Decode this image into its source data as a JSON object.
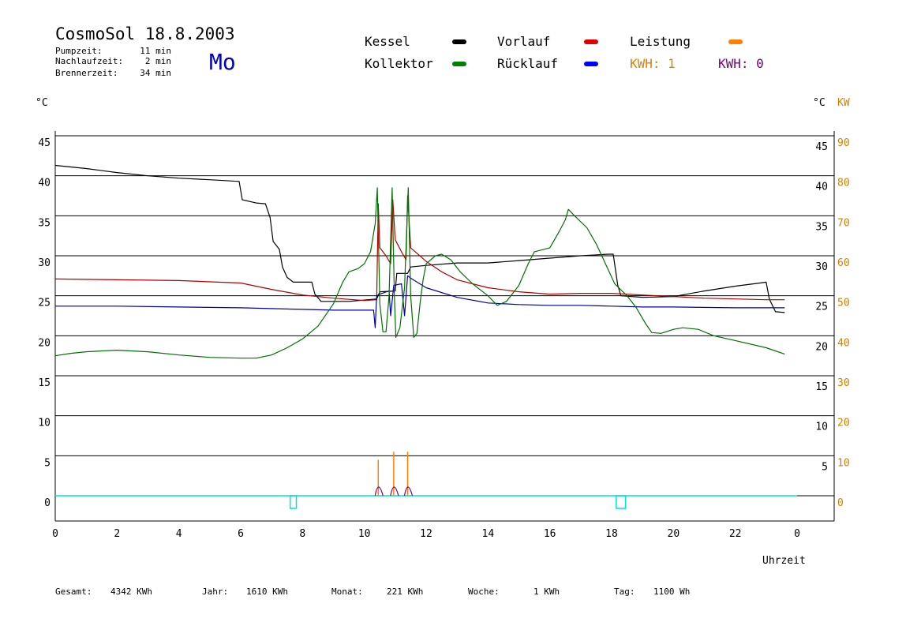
{
  "header": {
    "title": "CosmoSol 18.8.2003",
    "weekday": "Mo",
    "stats": [
      {
        "label": "Pumpzeit:",
        "value": "11 min"
      },
      {
        "label": "Nachlaufzeit:",
        "value": "2 min"
      },
      {
        "label": "Brennerzeit:",
        "value": "34 min"
      }
    ]
  },
  "legend": [
    {
      "name": "Kessel",
      "color": "#000000"
    },
    {
      "name": "Kollektor",
      "color": "#008000"
    },
    {
      "name": "Vorlauf",
      "color": "#e00000"
    },
    {
      "name": "Rücklauf",
      "color": "#0000ff"
    },
    {
      "name": "Leistung",
      "color": "#ff8000"
    }
  ],
  "kwh": [
    {
      "text": "KWH: 1",
      "color": "#e08000"
    },
    {
      "text": "KWH: 0",
      "color": "#800080"
    }
  ],
  "axes": {
    "left_unit": "°C",
    "right_unit_c": "°C",
    "right_unit_kw": "KW",
    "xlabel": "Uhrzeit"
  },
  "footer": [
    {
      "label": "Gesamt:",
      "value": "4342 KWh"
    },
    {
      "label": "Jahr:",
      "value": "1610 KWh"
    },
    {
      "label": "Monat:",
      "value": "221 KWh"
    },
    {
      "label": "Woche:",
      "value": "1 KWh"
    },
    {
      "label": "Tag:",
      "value": "1100 Wh"
    }
  ],
  "chart_data": {
    "type": "line",
    "xlim": [
      0,
      24
    ],
    "ylim": [
      0,
      45
    ],
    "y2lim": [
      0,
      90
    ],
    "x_ticks": [
      "0",
      "2",
      "4",
      "6",
      "8",
      "10",
      "12",
      "14",
      "16",
      "18",
      "20",
      "22",
      "0"
    ],
    "y_ticks": [
      "0",
      "5",
      "10",
      "15",
      "20",
      "25",
      "30",
      "35",
      "40",
      "45"
    ],
    "y2_ticks": [
      "0",
      "10",
      "20",
      "30",
      "40",
      "50",
      "60",
      "70",
      "80",
      "90"
    ],
    "grid": true,
    "colors": {
      "pump_marker": "#00e0e0",
      "leistung_fill": "#800080"
    },
    "series": [
      {
        "name": "Kessel",
        "color": "#000000",
        "points": [
          [
            0,
            41.3
          ],
          [
            1,
            40.9
          ],
          [
            2,
            40.4
          ],
          [
            3,
            40
          ],
          [
            4,
            39.7
          ],
          [
            5,
            39.5
          ],
          [
            5.95,
            39.3
          ],
          [
            6.05,
            37
          ],
          [
            6.5,
            36.6
          ],
          [
            6.8,
            36.5
          ],
          [
            6.95,
            34.8
          ],
          [
            7.05,
            31.8
          ],
          [
            7.25,
            30.8
          ],
          [
            7.35,
            28.6
          ],
          [
            7.5,
            27.3
          ],
          [
            7.7,
            26.7
          ],
          [
            8.3,
            26.7
          ],
          [
            8.4,
            25.2
          ],
          [
            8.6,
            24.3
          ],
          [
            9.5,
            24.3
          ],
          [
            10.4,
            24.6
          ],
          [
            10.5,
            25.5
          ],
          [
            11.0,
            25.6
          ],
          [
            11.05,
            27.8
          ],
          [
            11.2,
            27.8
          ],
          [
            11.4,
            27.8
          ],
          [
            11.5,
            28.6
          ],
          [
            12,
            28.8
          ],
          [
            13,
            29.1
          ],
          [
            14,
            29.1
          ],
          [
            15,
            29.4
          ],
          [
            16,
            29.7
          ],
          [
            17,
            30
          ],
          [
            17.9,
            30.2
          ],
          [
            18.05,
            30.2
          ],
          [
            18.2,
            26.3
          ],
          [
            18.3,
            25
          ],
          [
            19,
            24.8
          ],
          [
            20,
            24.9
          ],
          [
            21,
            25.6
          ],
          [
            22,
            26.2
          ],
          [
            22.8,
            26.6
          ],
          [
            23,
            26.7
          ],
          [
            23.1,
            24.6
          ],
          [
            23.3,
            23
          ],
          [
            23.6,
            22.9
          ]
        ]
      },
      {
        "name": "Vorlauf",
        "color": "#b00000",
        "points": [
          [
            0,
            27.1
          ],
          [
            2,
            27
          ],
          [
            4,
            26.9
          ],
          [
            6,
            26.6
          ],
          [
            7,
            25.8
          ],
          [
            8,
            25.1
          ],
          [
            9,
            24.7
          ],
          [
            10,
            24.4
          ],
          [
            10.4,
            24.5
          ],
          [
            10.45,
            36.5
          ],
          [
            10.5,
            31
          ],
          [
            10.7,
            30
          ],
          [
            10.85,
            29
          ],
          [
            10.92,
            37
          ],
          [
            11,
            32
          ],
          [
            11.2,
            30.5
          ],
          [
            11.35,
            29.5
          ],
          [
            11.4,
            37.5
          ],
          [
            11.5,
            31
          ],
          [
            12,
            29.3
          ],
          [
            12.5,
            28
          ],
          [
            13,
            27
          ],
          [
            14,
            26
          ],
          [
            15,
            25.5
          ],
          [
            16,
            25.2
          ],
          [
            17,
            25.3
          ],
          [
            18,
            25.3
          ],
          [
            19,
            25.1
          ],
          [
            20,
            24.9
          ],
          [
            21,
            24.7
          ],
          [
            22,
            24.6
          ],
          [
            23,
            24.5
          ],
          [
            23.6,
            24.5
          ]
        ]
      },
      {
        "name": "Rücklauf",
        "color": "#0000a0",
        "points": [
          [
            0,
            23.7
          ],
          [
            2,
            23.7
          ],
          [
            4,
            23.6
          ],
          [
            6,
            23.5
          ],
          [
            8,
            23.3
          ],
          [
            9,
            23.2
          ],
          [
            10.3,
            23.2
          ],
          [
            10.35,
            21
          ],
          [
            10.4,
            25
          ],
          [
            10.5,
            25.2
          ],
          [
            10.8,
            25.6
          ],
          [
            10.85,
            22.5
          ],
          [
            10.95,
            26.3
          ],
          [
            11.2,
            26.5
          ],
          [
            11.3,
            22.5
          ],
          [
            11.4,
            27.5
          ],
          [
            11.5,
            27.2
          ],
          [
            12,
            26
          ],
          [
            13,
            24.8
          ],
          [
            14,
            24.1
          ],
          [
            15,
            23.9
          ],
          [
            16,
            23.8
          ],
          [
            17,
            23.8
          ],
          [
            18,
            23.7
          ],
          [
            19,
            23.6
          ],
          [
            20,
            23.6
          ],
          [
            22,
            23.5
          ],
          [
            23.6,
            23.5
          ]
        ]
      },
      {
        "name": "Kollektor",
        "color": "#007000",
        "points": [
          [
            0,
            17.5
          ],
          [
            0.5,
            17.8
          ],
          [
            1,
            18
          ],
          [
            2,
            18.2
          ],
          [
            3,
            18
          ],
          [
            4,
            17.6
          ],
          [
            5,
            17.3
          ],
          [
            6,
            17.2
          ],
          [
            6.5,
            17.2
          ],
          [
            7,
            17.6
          ],
          [
            7.5,
            18.5
          ],
          [
            8,
            19.6
          ],
          [
            8.5,
            21.2
          ],
          [
            9,
            24
          ],
          [
            9.3,
            26.7
          ],
          [
            9.5,
            28
          ],
          [
            9.8,
            28.4
          ],
          [
            10,
            29
          ],
          [
            10.2,
            30.5
          ],
          [
            10.35,
            34
          ],
          [
            10.42,
            38.5
          ],
          [
            10.5,
            24
          ],
          [
            10.6,
            20.5
          ],
          [
            10.7,
            20.5
          ],
          [
            10.8,
            25
          ],
          [
            10.9,
            38.5
          ],
          [
            10.97,
            25
          ],
          [
            11.02,
            19.8
          ],
          [
            11.15,
            21
          ],
          [
            11.3,
            26
          ],
          [
            11.42,
            38.5
          ],
          [
            11.5,
            25
          ],
          [
            11.6,
            19.8
          ],
          [
            11.7,
            20.3
          ],
          [
            11.8,
            24
          ],
          [
            11.9,
            27
          ],
          [
            12,
            29
          ],
          [
            12.3,
            30
          ],
          [
            12.5,
            30.2
          ],
          [
            12.8,
            29.5
          ],
          [
            13.1,
            28
          ],
          [
            13.5,
            26.5
          ],
          [
            14,
            25
          ],
          [
            14.3,
            23.8
          ],
          [
            14.6,
            24.3
          ],
          [
            15,
            26.3
          ],
          [
            15.3,
            29
          ],
          [
            15.5,
            30.5
          ],
          [
            16,
            31
          ],
          [
            16.3,
            33
          ],
          [
            16.5,
            34.5
          ],
          [
            16.6,
            35.8
          ],
          [
            16.8,
            35
          ],
          [
            17.2,
            33.5
          ],
          [
            17.5,
            31.5
          ],
          [
            17.8,
            29
          ],
          [
            18.1,
            26.5
          ],
          [
            18.5,
            25
          ],
          [
            18.8,
            23.5
          ],
          [
            19.1,
            21.5
          ],
          [
            19.3,
            20.4
          ],
          [
            19.6,
            20.3
          ],
          [
            20,
            20.8
          ],
          [
            20.3,
            21
          ],
          [
            20.8,
            20.8
          ],
          [
            21.3,
            20
          ],
          [
            22,
            19.4
          ],
          [
            23,
            18.5
          ],
          [
            23.6,
            17.7
          ]
        ]
      }
    ],
    "leistung_spikes": [
      [
        10.45,
        4.5
      ],
      [
        10.95,
        5.5
      ],
      [
        11.4,
        5.5
      ]
    ],
    "pump_marks": [
      [
        7.6,
        7.8
      ],
      [
        18.15,
        18.45
      ]
    ]
  }
}
